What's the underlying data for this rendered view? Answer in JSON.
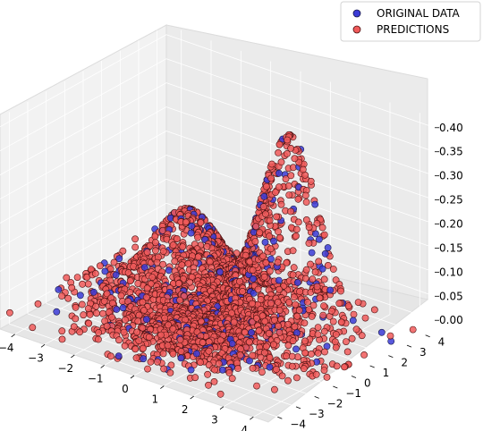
{
  "chart_data": {
    "type": "scatter",
    "subtype": "3d-scatter",
    "title": "",
    "xlabel": "",
    "ylabel": "",
    "zlabel": "",
    "xlim": [
      -4.5,
      4.5
    ],
    "ylim": [
      -4.5,
      4.5
    ],
    "zlim": [
      -0.02,
      0.42
    ],
    "x_ticks": [
      "−4",
      "−3",
      "−2",
      "−1",
      "0",
      "1",
      "2",
      "3",
      "4"
    ],
    "y_ticks": [
      "−4",
      "−3",
      "−2",
      "−1",
      "0",
      "1",
      "2",
      "3",
      "4"
    ],
    "z_ticks": [
      "0.00",
      "0.05",
      "0.10",
      "0.15",
      "0.20",
      "0.25",
      "0.30",
      "0.35",
      "0.40"
    ],
    "x_tick_values": [
      -4,
      -3,
      -2,
      -1,
      0,
      1,
      2,
      3,
      4
    ],
    "y_tick_values": [
      -4,
      -3,
      -2,
      -1,
      0,
      1,
      2,
      3,
      4
    ],
    "z_tick_values": [
      0.0,
      0.05,
      0.1,
      0.15,
      0.2,
      0.25,
      0.3,
      0.35,
      0.4
    ],
    "grid": true,
    "legend": "top-right",
    "series": [
      {
        "name": "ORIGINAL DATA",
        "color": "#3b3bd6",
        "edge": "#1a1a4a"
      },
      {
        "name": "PREDICTIONS",
        "color": "#f05a5a",
        "edge": "#4a1010"
      }
    ],
    "surface_model": {
      "description": "mixture of two gaussian peaks",
      "peaks": [
        {
          "x": 1.8,
          "y": 1.0,
          "height": 0.4,
          "sigma": 0.85
        },
        {
          "x": -1.5,
          "y": 0.8,
          "height": 0.18,
          "sigma": 1.0
        }
      ],
      "x_range": [
        -4.5,
        4.5
      ],
      "y_range": [
        -4.5,
        4.5
      ]
    },
    "point_counts": {
      "ORIGINAL DATA": 260,
      "PREDICTIONS": 2400
    }
  }
}
